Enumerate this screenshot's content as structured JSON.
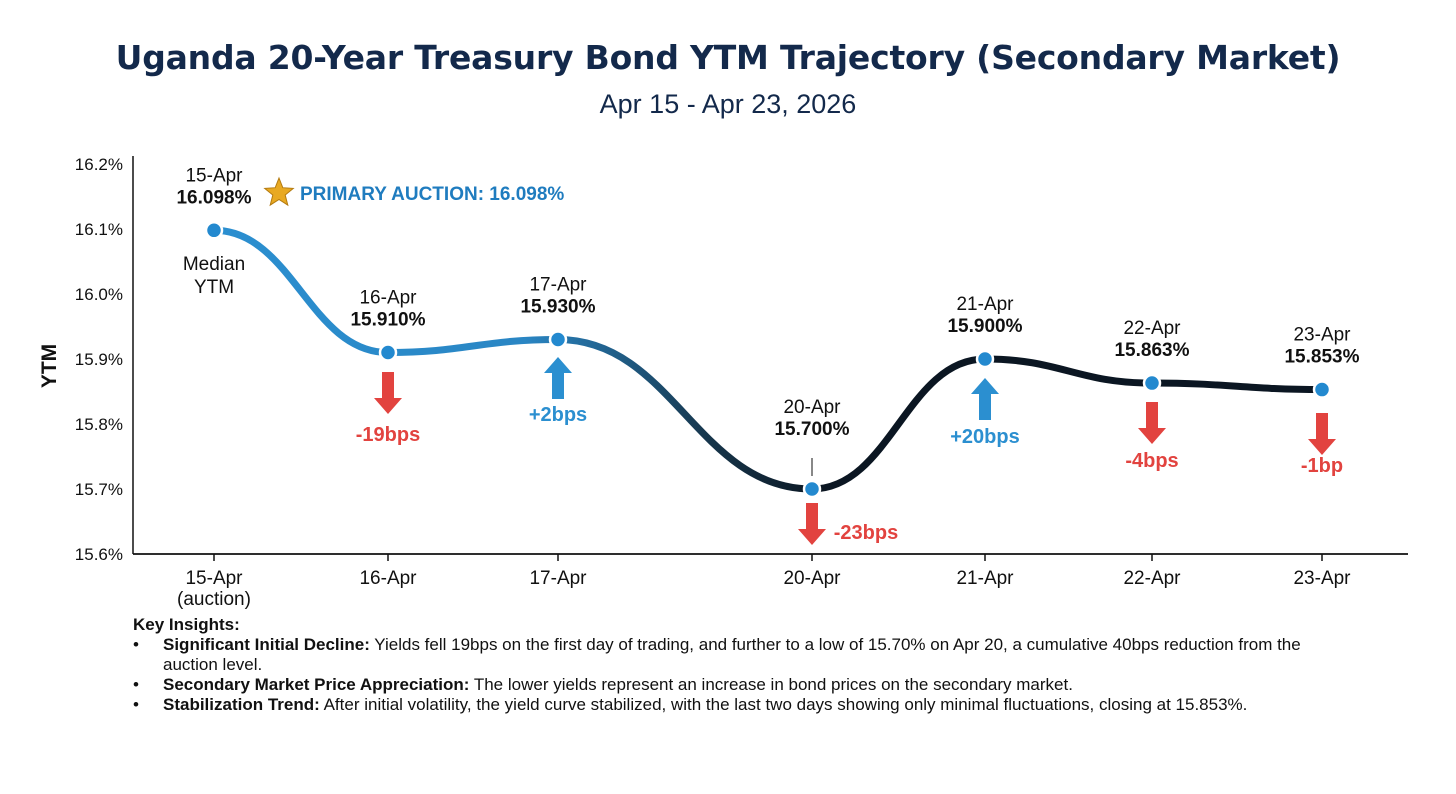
{
  "title": "Uganda 20-Year Treasury Bond YTM Trajectory (Secondary Market)",
  "subtitle": "Apr 15 - Apr 23, 2026",
  "colors": {
    "title": "#13294b",
    "line_start": "#2b8fd0",
    "line_end": "#0b1622",
    "point": "#2389cf",
    "up_arrow": "#2b8fd0",
    "down_arrow": "#e2433f",
    "auction_text": "#1f7cbf",
    "star": "#e8a922"
  },
  "chart_data": {
    "type": "line",
    "ylabel": "YTM",
    "xlabel": "",
    "ylim": [
      15.6,
      16.2
    ],
    "y_ticks": [
      "15.6%",
      "15.7%",
      "15.8%",
      "15.9%",
      "16.0%",
      "16.1%",
      "16.2%"
    ],
    "grid": false,
    "x": [
      "15-Apr",
      "16-Apr",
      "17-Apr",
      "20-Apr",
      "21-Apr",
      "22-Apr",
      "23-Apr"
    ],
    "x_tick_labels": [
      "15-Apr\n(auction)",
      "16-Apr",
      "17-Apr",
      "20-Apr",
      "21-Apr",
      "22-Apr",
      "23-Apr"
    ],
    "series": [
      {
        "values": [
          16.098,
          15.91,
          15.93,
          15.7,
          15.9,
          15.863,
          15.853
        ],
        "point_labels": [
          {
            "date": "15-Apr",
            "value": "16.098%"
          },
          {
            "date": "16-Apr",
            "value": "15.910%"
          },
          {
            "date": "17-Apr",
            "value": "15.930%"
          },
          {
            "date": "20-Apr",
            "value": "15.700%"
          },
          {
            "date": "21-Apr",
            "value": "15.900%"
          },
          {
            "date": "22-Apr",
            "value": "15.863%"
          },
          {
            "date": "23-Apr",
            "value": "15.853%"
          }
        ]
      }
    ],
    "changes": [
      {
        "index": 1,
        "label": "-19bps",
        "direction": "down"
      },
      {
        "index": 2,
        "label": "+2bps",
        "direction": "up"
      },
      {
        "index": 3,
        "label": "-23bps",
        "direction": "down"
      },
      {
        "index": 4,
        "label": "+20bps",
        "direction": "up"
      },
      {
        "index": 5,
        "label": "-4bps",
        "direction": "down"
      },
      {
        "index": 6,
        "label": "-1bp",
        "direction": "down"
      }
    ],
    "annotations": {
      "auction": "PRIMARY AUCTION: 16.098%",
      "median": [
        "Median",
        "YTM"
      ]
    }
  },
  "insights": {
    "heading": "Key Insights:",
    "items": [
      {
        "label": "Significant Initial Decline:",
        "text": " Yields fell 19bps on the first day of trading, and further to a low of 15.70% on Apr 20, a cumulative 40bps reduction from the auction level."
      },
      {
        "label": "Secondary Market Price Appreciation:",
        "text": " The lower yields represent an increase in bond prices on the secondary market."
      },
      {
        "label": "Stabilization Trend:",
        "text": " After initial volatility, the yield curve stabilized, with the last two days showing only minimal fluctuations, closing at 15.853%."
      }
    ]
  }
}
